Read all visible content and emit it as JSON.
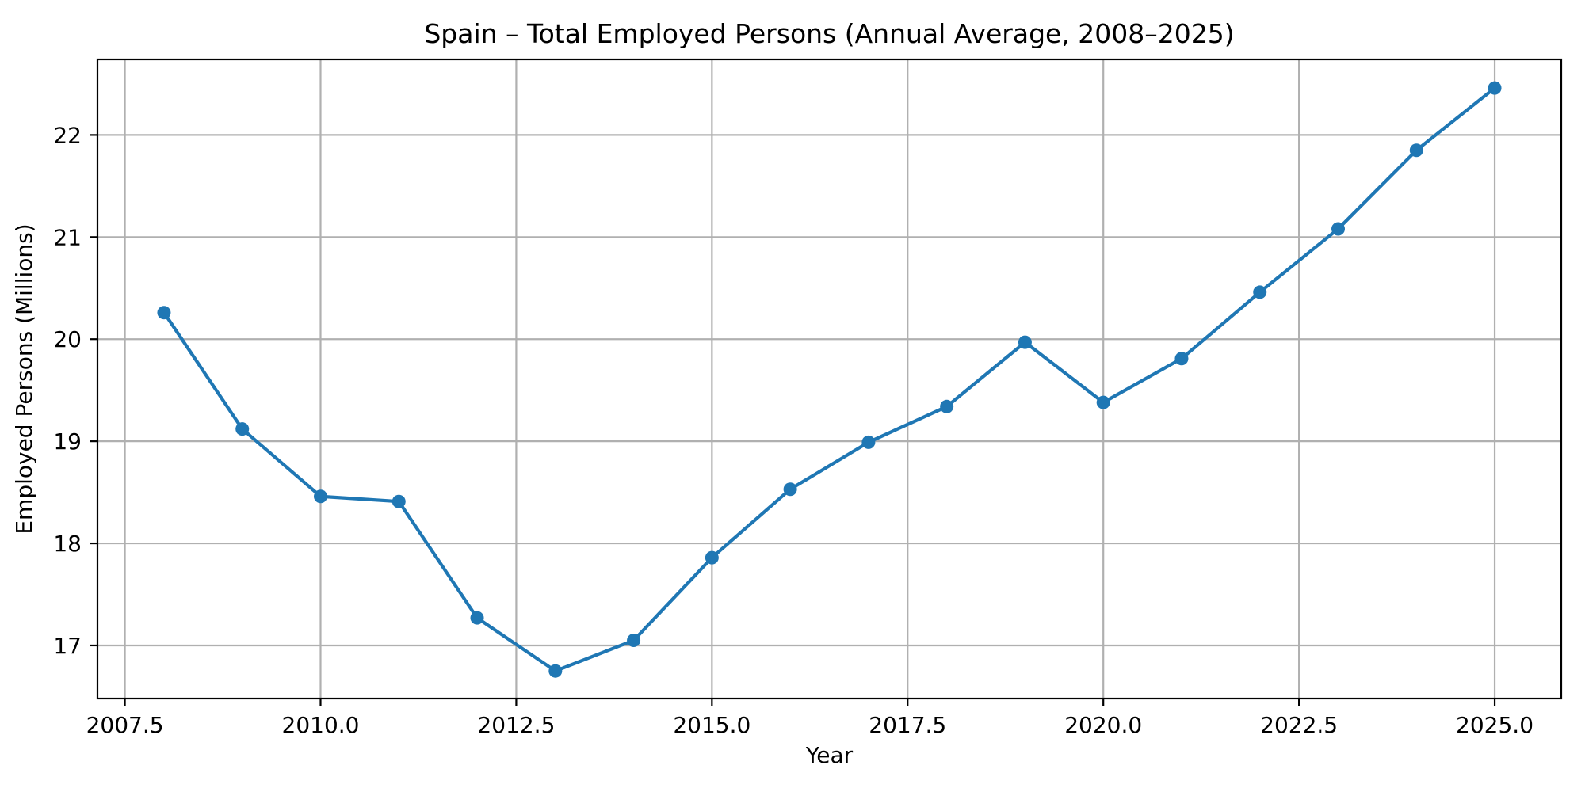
{
  "chart_data": {
    "type": "line",
    "title": "Spain – Total Employed Persons (Annual Average, 2008–2025)",
    "xlabel": "Year",
    "ylabel": "Employed Persons (Millions)",
    "x": [
      2008,
      2009,
      2010,
      2011,
      2012,
      2013,
      2014,
      2015,
      2016,
      2017,
      2018,
      2019,
      2020,
      2021,
      2022,
      2023,
      2024,
      2025
    ],
    "values": [
      20.26,
      19.12,
      18.46,
      18.41,
      17.27,
      16.75,
      17.05,
      17.86,
      18.53,
      18.99,
      19.34,
      19.97,
      19.38,
      19.81,
      20.46,
      21.08,
      21.85,
      22.46
    ],
    "series_name": "Total Employed Persons",
    "xlim": [
      2007.15,
      2025.85
    ],
    "ylim": [
      16.48,
      22.74
    ],
    "x_ticks": [
      2007.5,
      2010.0,
      2012.5,
      2015.0,
      2017.5,
      2020.0,
      2022.5,
      2025.0
    ],
    "x_tick_labels": [
      "2007.5",
      "2010.0",
      "2012.5",
      "2015.0",
      "2017.5",
      "2020.0",
      "2022.5",
      "2025.0"
    ],
    "y_ticks": [
      17,
      18,
      19,
      20,
      21,
      22
    ],
    "y_tick_labels": [
      "17",
      "18",
      "19",
      "20",
      "21",
      "22"
    ],
    "grid": true,
    "legend": false,
    "line_color": "#1f77b4",
    "marker": "circle",
    "grid_color": "#b0b0b0",
    "spine_color": "#000000",
    "tick_color": "#000000",
    "background": "#ffffff"
  }
}
